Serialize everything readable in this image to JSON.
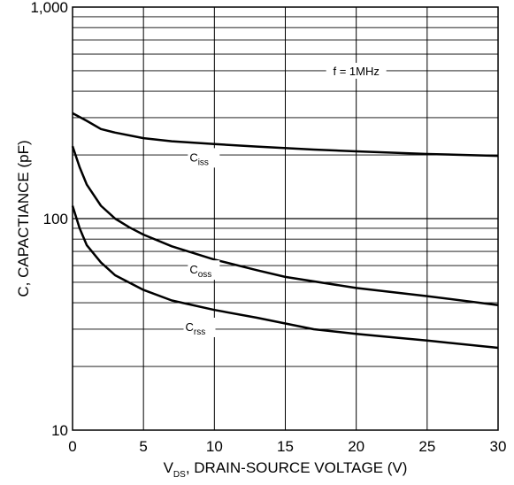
{
  "chart_data": {
    "type": "line",
    "title": "",
    "xlabel": {
      "prefix": "V",
      "sub": "DS",
      "rest": ", DRAIN-SOURCE VOLTAGE (V)"
    },
    "ylabel": "C, CAPACTIANCE (pF)",
    "xlim": [
      0,
      30
    ],
    "ylim": [
      10,
      1000
    ],
    "yscale": "log",
    "grid": true,
    "x_ticks": [
      0,
      5,
      10,
      15,
      20,
      25,
      30
    ],
    "x_tick_labels": [
      "0",
      "5",
      "10",
      "15",
      "20",
      "25",
      "30"
    ],
    "y_ticks": [
      10,
      100,
      1000
    ],
    "y_tick_labels": [
      "10",
      "100",
      "1,000"
    ],
    "annotation": {
      "text": "f = 1MHz",
      "x": 20,
      "y": 500
    },
    "series": [
      {
        "name": "Ciss",
        "label_main": "C",
        "label_sub": "iss",
        "label_x": 9.5,
        "label_y": 190,
        "x": [
          0,
          1,
          2,
          3,
          5,
          7,
          10,
          13,
          17,
          20,
          25,
          30
        ],
        "y": [
          315,
          290,
          265,
          255,
          240,
          232,
          225,
          219,
          212,
          208,
          202,
          198
        ]
      },
      {
        "name": "Coss",
        "label_main": "C",
        "label_sub": "oss",
        "label_x": 9.5,
        "label_y": 56,
        "x": [
          0,
          0.5,
          1,
          2,
          3,
          4,
          5,
          7,
          10,
          13,
          15,
          20,
          25,
          30
        ],
        "y": [
          220,
          175,
          145,
          115,
          100,
          91,
          84,
          74,
          64,
          57,
          53,
          47,
          43,
          39
        ]
      },
      {
        "name": "Crss",
        "label_main": "C",
        "label_sub": "rss",
        "label_x": 9.2,
        "label_y": 30,
        "x": [
          0,
          0.5,
          1,
          2,
          3,
          5,
          7,
          10,
          13,
          17,
          20,
          25,
          30
        ],
        "y": [
          115,
          90,
          75,
          62,
          54,
          46,
          41,
          37,
          34,
          30,
          28.5,
          26.5,
          24.5
        ]
      }
    ]
  }
}
